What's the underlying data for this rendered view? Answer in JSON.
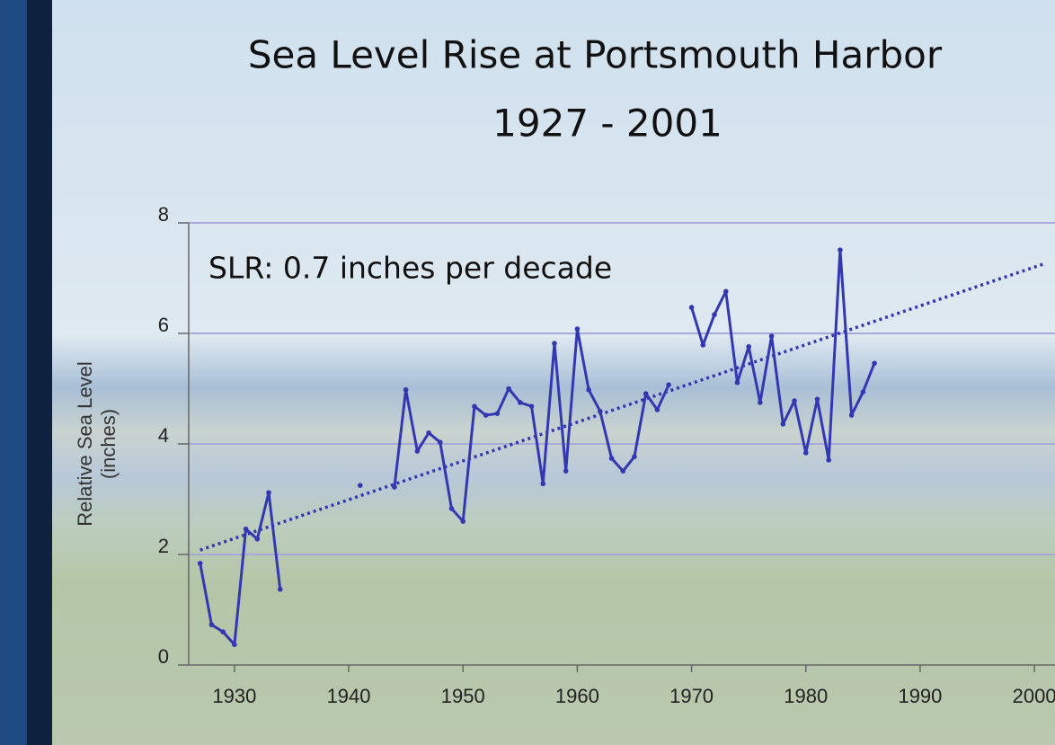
{
  "chart_data": {
    "type": "line",
    "title": "Sea Level Rise at Portsmouth Harbor",
    "subtitle": "1927 - 2001",
    "annotation": "SLR:  0.7 inches per decade",
    "ylabel": "Relative Sea Level",
    "ylabel_unit": "(inches)",
    "x": [
      1927,
      1928,
      1929,
      1930,
      1931,
      1932,
      1933,
      1934,
      1935,
      1936,
      1937,
      1938,
      1939,
      1940,
      1941,
      1942,
      1943,
      1944,
      1945,
      1946,
      1947,
      1948,
      1949,
      1950,
      1951,
      1952,
      1953,
      1954,
      1955,
      1956,
      1957,
      1958,
      1959,
      1960,
      1961,
      1962,
      1963,
      1964,
      1965,
      1966,
      1967,
      1968,
      1969,
      1970,
      1971,
      1972,
      1973,
      1974,
      1975,
      1976,
      1977,
      1978,
      1979,
      1980,
      1981,
      1982,
      1983,
      1984,
      1985,
      1986
    ],
    "series": [
      {
        "color": "#3438b0",
        "values": [
          1.84,
          0.73,
          0.6,
          0.37,
          2.46,
          2.28,
          3.12,
          1.37,
          null,
          null,
          null,
          null,
          null,
          null,
          3.25,
          null,
          null,
          3.22,
          4.98,
          3.87,
          4.2,
          4.03,
          2.83,
          2.6,
          4.68,
          4.52,
          4.55,
          5.0,
          4.75,
          4.68,
          3.28,
          5.82,
          3.51,
          6.08,
          4.98,
          4.59,
          3.74,
          3.51,
          3.77,
          4.91,
          4.62,
          5.07,
          null,
          6.47,
          5.79,
          6.34,
          6.76,
          5.11,
          5.76,
          4.75,
          5.95,
          4.36,
          4.78,
          3.84,
          4.81,
          3.71,
          7.51,
          4.52,
          4.94,
          5.46
        ]
      }
    ],
    "trend": {
      "color": "#3438b0",
      "x": [
        1927,
        2001
      ],
      "values": [
        2.08,
        7.27
      ]
    },
    "xlim": [
      1926,
      2001.8
    ],
    "ylim": [
      0,
      8
    ],
    "xticks": [
      1930,
      1940,
      1950,
      1960,
      1970,
      1980,
      1990,
      2000
    ],
    "yticks": [
      0,
      2,
      4,
      6,
      8
    ],
    "grid": true
  }
}
